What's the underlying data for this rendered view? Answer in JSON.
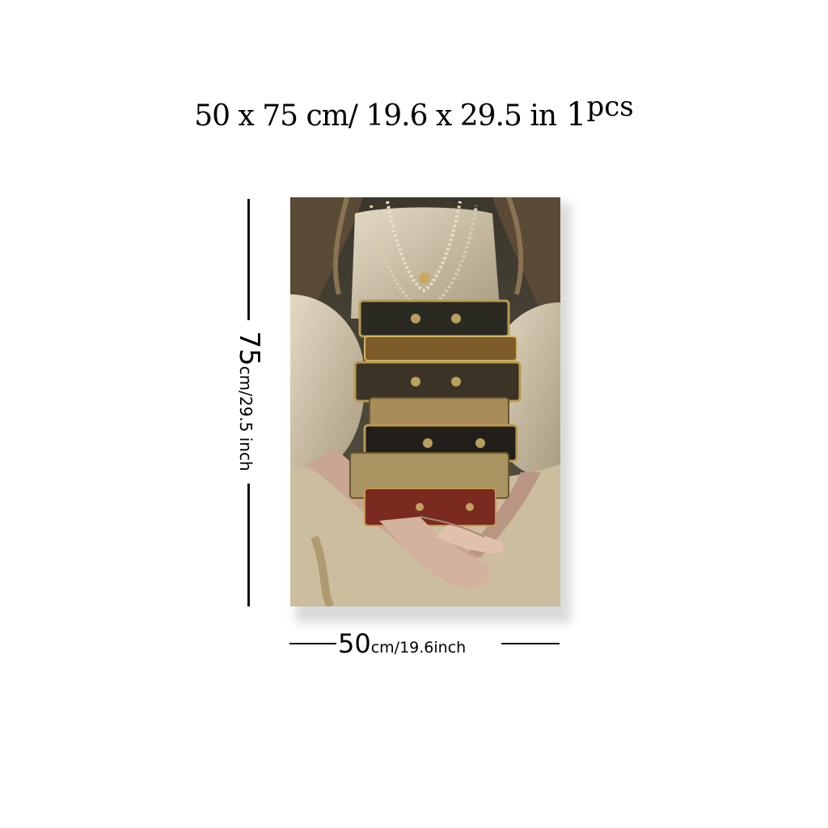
{
  "headline": {
    "size_text": "50 x 75 cm/ 19.6  x  29.5 in",
    "qty_number": "1",
    "qty_unit": "pcs"
  },
  "height_label": {
    "value": "75",
    "unit": "cm/29.5 inch"
  },
  "width_label": {
    "value": "50",
    "unit": "cm/19.6inch"
  },
  "artwork": {
    "icon": "books-held-by-woman-painting",
    "colors": {
      "background": "#4a4537",
      "lace": "#d8ccb3",
      "gold": "#b99a52",
      "book_dark": "#2a2a22",
      "book_red": "#7a2a1e",
      "skin": "#c8a692"
    }
  }
}
